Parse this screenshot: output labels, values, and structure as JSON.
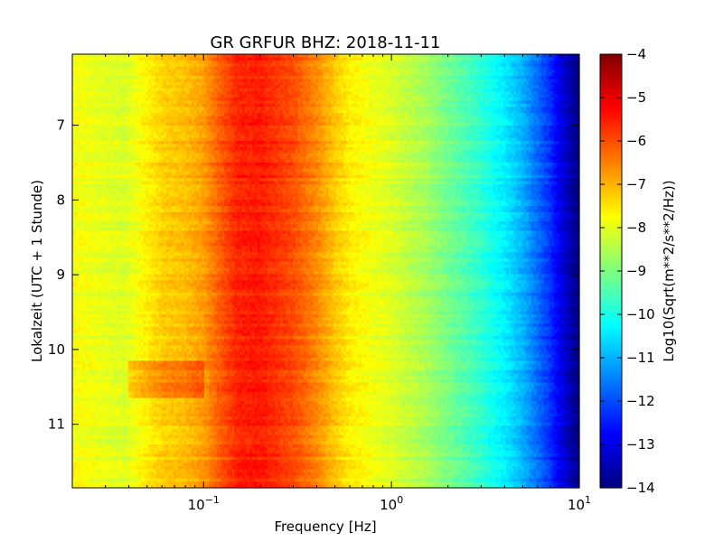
{
  "chart_data": {
    "type": "heatmap",
    "title": "GR GRFUR BHZ: 2018-11-11",
    "xlabel": "Frequency [Hz]",
    "ylabel": "Lokalzeit (UTC + 1 Stunde)",
    "x_scale": "log",
    "xlim": [
      0.02,
      10
    ],
    "ylim": [
      11.85,
      6.05
    ],
    "y_inverted": true,
    "x_ticks": [
      {
        "value": 0.1,
        "base": "10",
        "exp": "−1"
      },
      {
        "value": 1,
        "base": "10",
        "exp": "0"
      },
      {
        "value": 10,
        "base": "10",
        "exp": "1"
      }
    ],
    "y_ticks": [
      {
        "value": 7,
        "label": "7"
      },
      {
        "value": 8,
        "label": "8"
      },
      {
        "value": 9,
        "label": "9"
      },
      {
        "value": 10,
        "label": "10"
      },
      {
        "value": 11,
        "label": "11"
      }
    ],
    "colorbar": {
      "label": "Log10(Sqrt(m**2/s**2/Hz))",
      "range": [
        -14,
        -4
      ],
      "colormap": "jet",
      "ticks": [
        "−4",
        "−5",
        "−6",
        "−7",
        "−8",
        "−9",
        "−10",
        "−11",
        "−12",
        "−13",
        "−14"
      ]
    },
    "grid": false,
    "spectrum_profile": {
      "frequency_hz": [
        0.02,
        0.038,
        0.06,
        0.08,
        0.1,
        0.12,
        0.15,
        0.2,
        0.3,
        0.4,
        0.5,
        0.6,
        0.8,
        1.0,
        1.5,
        2.0,
        3.0,
        4.0,
        5.0,
        6.0,
        7.0,
        8.0,
        9.0,
        10.0
      ],
      "log10_psd": [
        -7.8,
        -8.1,
        -7.3,
        -7.1,
        -6.8,
        -6.2,
        -5.6,
        -5.5,
        -6.0,
        -6.6,
        -7.2,
        -7.6,
        -7.9,
        -8.1,
        -8.6,
        -9.1,
        -9.8,
        -10.4,
        -11.0,
        -11.7,
        -12.3,
        -13.0,
        -13.6,
        -14.0
      ]
    },
    "row_variation": {
      "rows": 140,
      "freq_bins": 200,
      "noise_amplitude": 0.35,
      "enhanced_band": {
        "time_range": [
          10.15,
          10.65
        ],
        "freq_range": [
          0.04,
          0.1
        ],
        "delta": 0.7
      }
    }
  }
}
